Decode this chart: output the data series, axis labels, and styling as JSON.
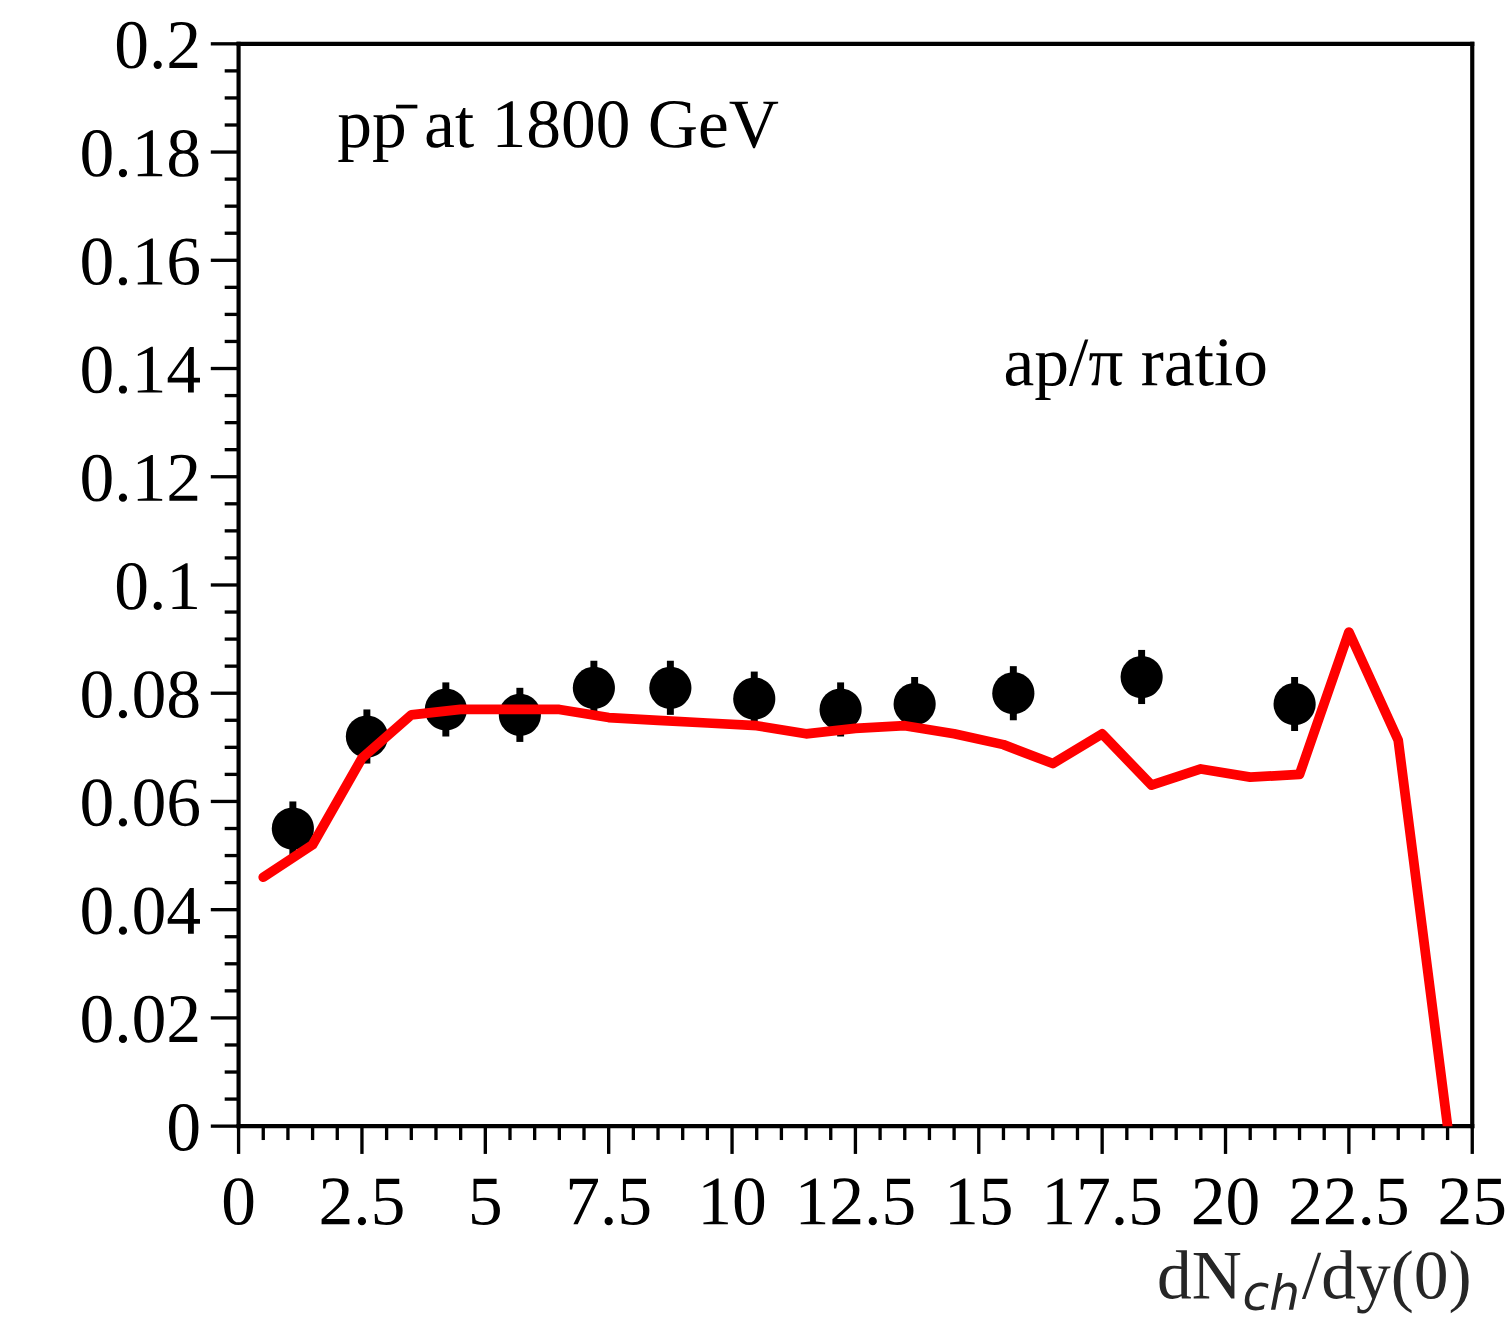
{
  "chart_data": {
    "type": "scatter",
    "xlabel": "dN$_{ch}$/dy(0)",
    "annotations": [
      "pp̄ at 1800 GeV",
      "ap/π ratio"
    ],
    "xlim": [
      0,
      25
    ],
    "xticks": [
      0,
      2.5,
      5,
      7.5,
      10,
      12.5,
      15,
      17.5,
      20,
      22.5,
      25
    ],
    "ylim": [
      0,
      0.2
    ],
    "yticks": [
      0,
      0.02,
      0.04,
      0.06,
      0.08,
      0.1,
      0.12,
      0.14,
      0.16,
      0.18,
      0.2
    ],
    "grid": false,
    "legend": false,
    "series": [
      {
        "type": "line",
        "color": "#ff0000",
        "marker": "none",
        "line_style": "solid",
        "x": [
          0.5,
          1.5,
          2.5,
          3.5,
          4.5,
          5.5,
          6.5,
          7.5,
          8.5,
          9.5,
          10.5,
          11.5,
          12.5,
          13.5,
          14.5,
          15.5,
          16.5,
          17.5,
          18.5,
          19.5,
          20.5,
          21.5,
          22.5,
          23.5,
          24.5
        ],
        "values": [
          0.046,
          0.052,
          0.068,
          0.076,
          0.077,
          0.077,
          0.077,
          0.0755,
          0.075,
          0.0745,
          0.074,
          0.0725,
          0.0735,
          0.074,
          0.0725,
          0.0705,
          0.067,
          0.0725,
          0.063,
          0.066,
          0.0645,
          0.065,
          0.0913,
          0.0713,
          0
        ]
      },
      {
        "color": "#000000",
        "marker": "circle",
        "x": [
          1.1,
          2.6,
          4.2,
          5.7,
          7.2,
          8.75,
          10.45,
          12.2,
          13.7,
          15.7,
          18.3,
          21.4
        ],
        "values": [
          0.055,
          0.072,
          0.077,
          0.076,
          0.081,
          0.081,
          0.079,
          0.077,
          0.078,
          0.08,
          0.083,
          0.078
        ],
        "errors": [
          0.005,
          0.005,
          0.005,
          0.005,
          0.005,
          0.005,
          0.005,
          0.005,
          0.005,
          0.005,
          0.005,
          0.005
        ]
      }
    ]
  }
}
